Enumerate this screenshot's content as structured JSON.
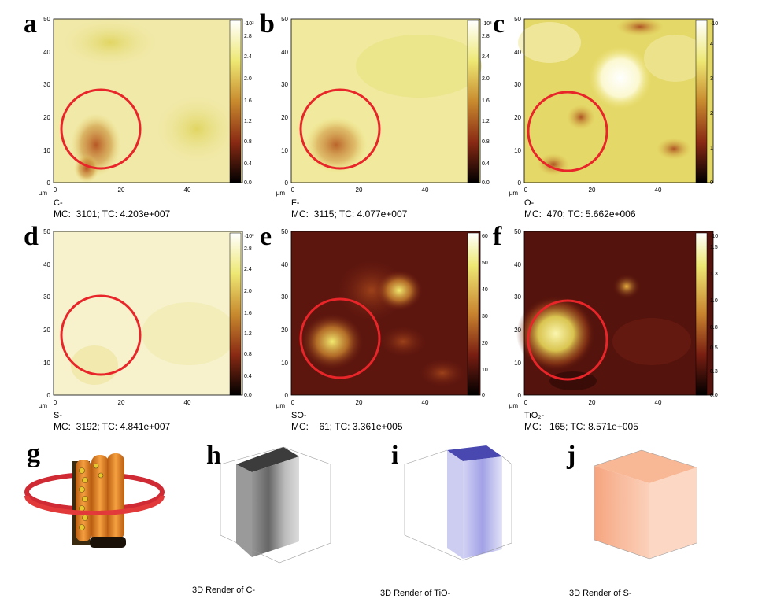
{
  "panels": [
    {
      "letter": "a",
      "ion": "C-",
      "mc": "MC:  3101; TC: 4.203e+007",
      "map": "light",
      "exp": "·10³",
      "yticks": [
        "50",
        "40",
        "30",
        "20",
        "10",
        "0"
      ],
      "xticks": [
        "0",
        "20",
        "40"
      ],
      "unit": "µm",
      "cbar": [
        "2.8",
        "2.4",
        "2.0",
        "1.6",
        "1.2",
        "0.8",
        "0.4",
        "0.0"
      ]
    },
    {
      "letter": "b",
      "ion": "F-",
      "mc": "MC:  3115; TC: 4.077e+007",
      "map": "light",
      "exp": "·10³",
      "yticks": [
        "50",
        "40",
        "30",
        "20",
        "10",
        "0"
      ],
      "xticks": [
        "0",
        "20",
        "40"
      ],
      "unit": "µm",
      "cbar": [
        "2.8",
        "2.4",
        "2.0",
        "1.6",
        "1.2",
        "0.8",
        "0.4",
        "0.0"
      ]
    },
    {
      "letter": "c",
      "ion": "O-",
      "mc": "MC:  470; TC: 5.662e+006",
      "map": "blotchy",
      "exp": "·10",
      "yticks": [
        "50",
        "40",
        "30",
        "20",
        "10",
        "0"
      ],
      "xticks": [
        "0",
        "20",
        "40"
      ],
      "unit": "µm",
      "cbar": [
        "4",
        "3",
        "2",
        "1",
        "0"
      ]
    },
    {
      "letter": "d",
      "ion": "S-",
      "mc": "MC:  3192; TC: 4.841e+007",
      "map": "verylight",
      "exp": "·10³",
      "yticks": [
        "50",
        "40",
        "30",
        "20",
        "10",
        "0"
      ],
      "xticks": [
        "0",
        "20",
        "40"
      ],
      "unit": "µm",
      "cbar": [
        "2.8",
        "2.4",
        "2.0",
        "1.6",
        "1.2",
        "0.8",
        "0.4",
        "0.0"
      ]
    },
    {
      "letter": "e",
      "ion": "SO-",
      "mc": "MC:    61; TC: 3.361e+005",
      "map": "dark",
      "exp": "",
      "yticks": [
        "50",
        "40",
        "30",
        "20",
        "10",
        "0"
      ],
      "xticks": [
        "0",
        "20",
        "40"
      ],
      "unit": "µm",
      "cbar": [
        "60",
        "50",
        "40",
        "30",
        "20",
        "10",
        "0"
      ]
    },
    {
      "letter": "f",
      "ion": "TiO₂-",
      "mc": "MC:   165; TC: 8.571e+005",
      "map": "darkbright",
      "exp": "·10",
      "yticks": [
        "50",
        "40",
        "30",
        "20",
        "10",
        "0"
      ],
      "xticks": [
        "0",
        "20",
        "40"
      ],
      "unit": "µm",
      "cbar": [
        "1.5",
        "1.3",
        "1.0",
        "0.8",
        "0.5",
        "0.3",
        "0.0"
      ]
    }
  ],
  "renders": [
    {
      "letter": "g",
      "caption": ""
    },
    {
      "letter": "h",
      "caption": "3D Render of C-"
    },
    {
      "letter": "i",
      "caption": "3D Render of TiO-"
    },
    {
      "letter": "j",
      "caption": "3D Render of S-"
    }
  ],
  "colors": {
    "circle": "#e8262a",
    "tube": "#f08a2a",
    "ring": "#e23a3a"
  }
}
